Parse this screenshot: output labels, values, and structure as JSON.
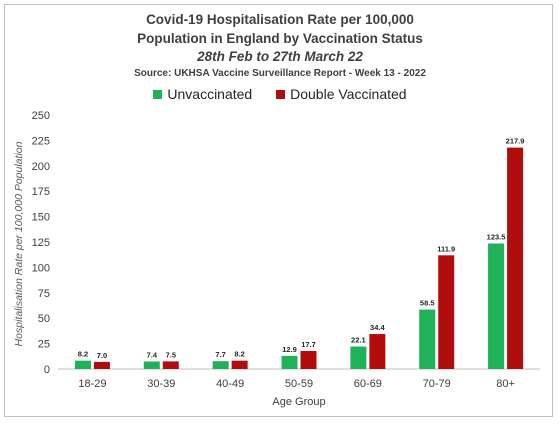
{
  "chart_data": {
    "type": "bar",
    "title_lines": [
      "Covid-19 Hospitalisation Rate per 100,000",
      "Population in England by Vaccination Status"
    ],
    "subtitle": "28th Feb to 27th March 22",
    "source": "Source: UKHSA Vaccine Surveillance Report - Week 13 - 2022",
    "xlabel": "Age Group",
    "ylabel": "Hospitalisation Rate per 100,000 Population",
    "categories": [
      "18-29",
      "30-39",
      "40-49",
      "50-59",
      "60-69",
      "70-79",
      "80+"
    ],
    "series": [
      {
        "name": "Unvaccinated",
        "color": "#1fb259",
        "values": [
          8.2,
          7.4,
          7.7,
          12.9,
          22.1,
          58.5,
          123.5
        ]
      },
      {
        "name": "Double Vaccinated",
        "color": "#b20d0d",
        "values": [
          7.0,
          7.5,
          8.2,
          17.7,
          34.4,
          111.9,
          217.9
        ]
      }
    ],
    "ylim": [
      0,
      250
    ],
    "yticks": [
      0,
      25,
      50,
      75,
      100,
      125,
      150,
      175,
      200,
      225,
      250
    ],
    "grid": false,
    "legend_position": "top"
  }
}
